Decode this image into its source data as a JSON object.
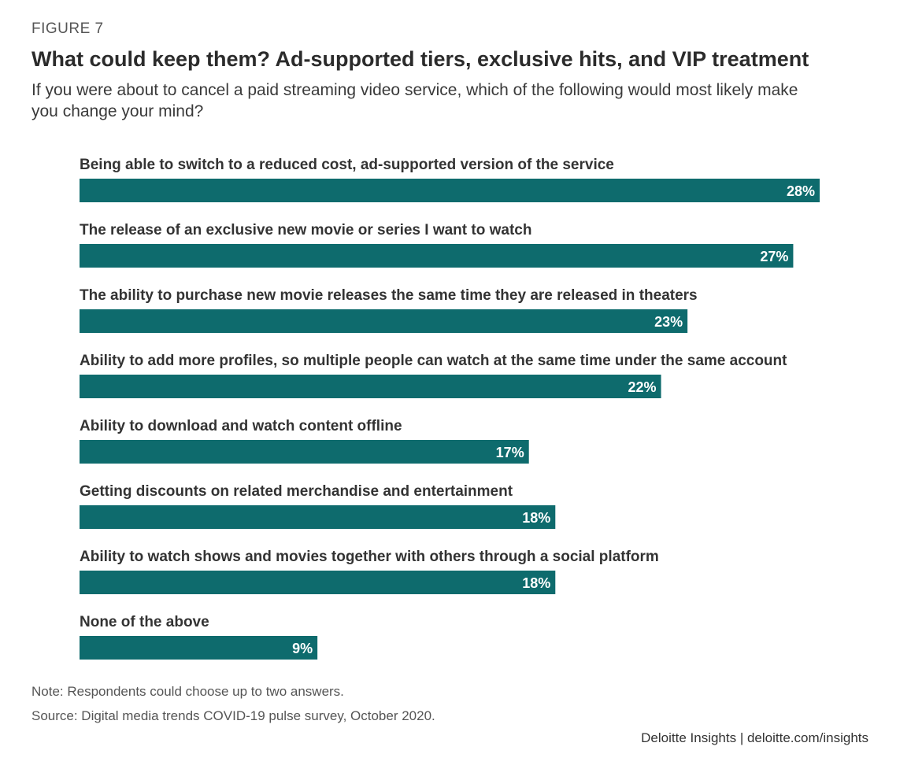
{
  "figure_label": "FIGURE 7",
  "title": "What could keep them? Ad-supported tiers, exclusive hits, and VIP treatment",
  "subtitle": "If you were about to cancel a paid streaming video service, which of the following would most likely make you change your mind?",
  "note": "Note: Respondents could choose up to two answers.",
  "source": "Source: Digital media trends COVID-19 pulse survey, October 2020.",
  "brand": "Deloitte Insights | deloitte.com/insights",
  "colors": {
    "bar": "#0e6b6d",
    "value_text": "#ffffff"
  },
  "chart_data": {
    "type": "bar",
    "orientation": "horizontal",
    "title": "What could keep them? Ad-supported tiers, exclusive hits, and VIP treatment",
    "categories": [
      "Being able to switch to a reduced cost, ad-supported version of the service",
      "The release of an exclusive new movie or series I want to watch",
      "The ability to purchase new movie releases the same time they are released in theaters",
      "Ability to add more profiles, so multiple people can watch at the same time under the same account",
      "Ability to download and watch content offline",
      "Getting discounts on related merchandise and entertainment",
      "Ability to watch shows and movies together with others through a social platform",
      "None of the above"
    ],
    "values": [
      28,
      27,
      23,
      22,
      17,
      18,
      18,
      9
    ],
    "value_labels": [
      "28%",
      "27%",
      "23%",
      "22%",
      "17%",
      "18%",
      "18%",
      "9%"
    ],
    "unit": "%",
    "xlim": [
      0,
      28
    ],
    "grid": false,
    "legend": "none"
  }
}
